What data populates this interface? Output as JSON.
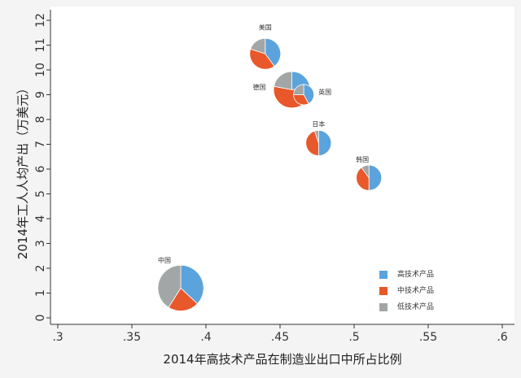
{
  "chart_data": {
    "type": "scatter",
    "title": "",
    "xlabel": "2014年高技术产品在制造业出口中所占比例",
    "ylabel": "2014年工人人均产出（万美元）",
    "xlim": [
      0.3,
      0.6
    ],
    "ylim": [
      0,
      12
    ],
    "x_ticks": [
      ".3",
      ".35",
      ".4",
      ".45",
      ".5",
      ".55",
      ".6"
    ],
    "x_tick_values": [
      0.3,
      0.35,
      0.4,
      0.45,
      0.5,
      0.55,
      0.6
    ],
    "y_ticks": [
      "0",
      "1",
      "2",
      "3",
      "4",
      "5",
      "6",
      "7",
      "8",
      "9",
      "10",
      "11",
      "12"
    ],
    "grid": false,
    "legend_placement": "bottom-right",
    "series": [
      {
        "name": "高技术产品",
        "color": "#5ba3dd"
      },
      {
        "name": "中技术产品",
        "color": "#e8582a"
      },
      {
        "name": "低技术产品",
        "color": "#a2a6a6"
      }
    ],
    "points": [
      {
        "label": "美国",
        "x": 0.44,
        "y": 10.65,
        "size": 1.0,
        "shares": [
          0.4,
          0.4,
          0.2
        ]
      },
      {
        "label": "德国",
        "x": 0.458,
        "y": 9.2,
        "size": 1.18,
        "shares": [
          0.23,
          0.55,
          0.22
        ]
      },
      {
        "label": "英国",
        "x": 0.466,
        "y": 9.0,
        "size": 0.66,
        "shares": [
          0.42,
          0.33,
          0.25
        ]
      },
      {
        "label": "日本",
        "x": 0.476,
        "y": 7.05,
        "size": 0.82,
        "shares": [
          0.5,
          0.45,
          0.05
        ]
      },
      {
        "label": "韩国",
        "x": 0.51,
        "y": 5.65,
        "size": 0.82,
        "shares": [
          0.5,
          0.4,
          0.1
        ]
      },
      {
        "label": "中国",
        "x": 0.383,
        "y": 1.2,
        "size": 1.48,
        "shares": [
          0.37,
          0.22,
          0.41
        ]
      }
    ]
  }
}
